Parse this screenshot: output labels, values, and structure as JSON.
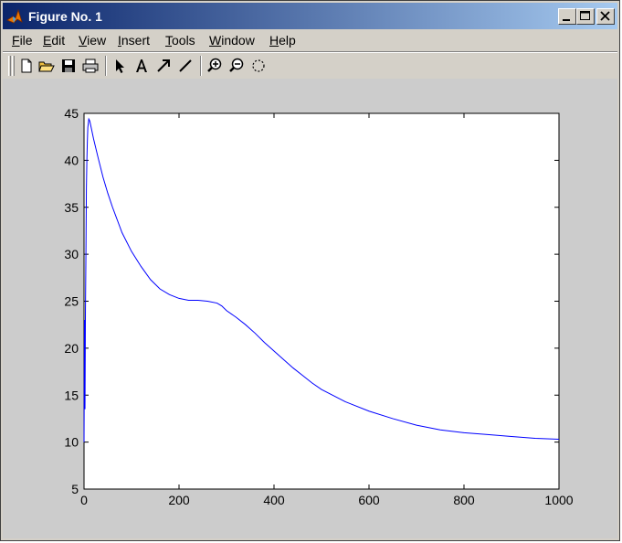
{
  "window": {
    "title": "Figure No. 1",
    "title_gradient": [
      "#0a246a",
      "#a6caf0"
    ],
    "controls": [
      "minimize-icon",
      "maximize-icon",
      "close-icon"
    ]
  },
  "menu": {
    "items": [
      {
        "pre": "",
        "key": "F",
        "post": "ile"
      },
      {
        "pre": "",
        "key": "E",
        "post": "dit"
      },
      {
        "pre": "",
        "key": "V",
        "post": "iew"
      },
      {
        "pre": "",
        "key": "I",
        "post": "nsert"
      },
      {
        "pre": "",
        "key": "T",
        "post": "ools"
      },
      {
        "pre": "",
        "key": "W",
        "post": "indow"
      },
      {
        "pre": "",
        "key": "H",
        "post": "elp"
      }
    ]
  },
  "toolbar": {
    "tools": [
      "new-file-icon",
      "open-folder-icon",
      "save-icon",
      "print-icon",
      "select-arrow-icon",
      "insert-text-icon",
      "insert-arrow-icon",
      "insert-line-icon",
      "zoom-in-icon",
      "zoom-out-icon",
      "rotate-3d-icon"
    ]
  },
  "colors": {
    "figure_background": "#cccccc",
    "axes_background": "#ffffff",
    "line": "#0000ff"
  },
  "chart_data": {
    "type": "line",
    "title": "",
    "xlabel": "",
    "ylabel": "",
    "xlim": [
      0,
      1000
    ],
    "ylim": [
      5,
      45
    ],
    "x_ticks": [
      "0",
      "200",
      "400",
      "600",
      "800",
      "1000"
    ],
    "y_ticks": [
      "5",
      "10",
      "15",
      "20",
      "25",
      "30",
      "35",
      "40",
      "45"
    ],
    "grid": false,
    "series": [
      {
        "color": "#0000ff",
        "x": [
          0,
          1,
          2,
          3,
          4,
          5,
          6,
          7,
          8,
          10,
          12,
          15,
          20,
          30,
          40,
          50,
          60,
          80,
          100,
          120,
          140,
          160,
          180,
          200,
          220,
          240,
          260,
          280,
          290,
          300,
          320,
          340,
          360,
          380,
          400,
          420,
          440,
          460,
          480,
          500,
          550,
          600,
          650,
          700,
          750,
          800,
          850,
          900,
          950,
          1000
        ],
        "y": [
          10,
          23,
          13.5,
          24,
          30,
          37,
          40,
          42,
          43.5,
          44.4,
          44.2,
          43.5,
          42.3,
          40.2,
          38.2,
          36.5,
          35,
          32.3,
          30.3,
          28.7,
          27.3,
          26.3,
          25.7,
          25.3,
          25.1,
          25.1,
          25,
          24.8,
          24.5,
          24,
          23.3,
          22.5,
          21.6,
          20.6,
          19.7,
          18.8,
          17.9,
          17.1,
          16.3,
          15.6,
          14.3,
          13.3,
          12.5,
          11.8,
          11.3,
          11,
          10.8,
          10.6,
          10.4,
          10.3
        ]
      }
    ]
  }
}
